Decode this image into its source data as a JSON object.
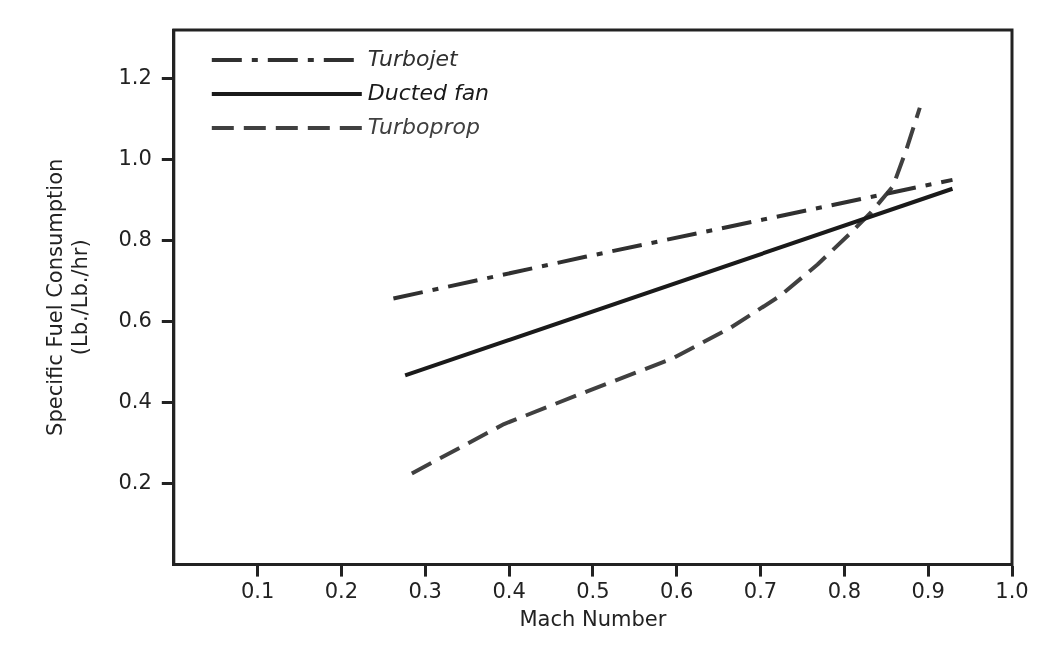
{
  "chart_data": {
    "type": "line",
    "xlabel": "Mach Number",
    "ylabel": "Specific Fuel Consumption\n(Lb./Lb./hr)",
    "xlim": [
      0,
      1.0
    ],
    "ylim": [
      0,
      1.32
    ],
    "xticks": [
      0.1,
      0.2,
      0.3,
      0.4,
      0.5,
      0.6,
      0.7,
      0.8,
      0.9,
      {
        "value": 1,
        "label": "1.0"
      }
    ],
    "yticks": [
      0.2,
      0.4,
      0.6,
      0.8,
      {
        "value": 1,
        "label": "1.0"
      },
      1.2
    ],
    "grid": false,
    "legend": "top left",
    "marker": "none",
    "series": [
      {
        "name": "Turbojet",
        "color": "#303030",
        "line_style": "dashdot",
        "x": [
          0.262,
          0.491,
          0.929
        ],
        "values": [
          0.657,
          0.76,
          0.95
        ]
      },
      {
        "name": "Ducted fan",
        "color": "#1a1a1a",
        "line_style": "solid",
        "x": [
          0.276,
          0.929
        ],
        "values": [
          0.467,
          0.928
        ]
      },
      {
        "name": "Turboprop",
        "color": "#404040",
        "line_style": "dashed",
        "x": [
          0.284,
          0.394,
          0.497,
          0.594,
          0.665,
          0.723,
          0.768,
          0.807,
          0.832,
          0.858,
          0.874,
          0.89
        ],
        "values": [
          0.225,
          0.347,
          0.431,
          0.508,
          0.586,
          0.663,
          0.741,
          0.818,
          0.87,
          0.934,
          1.025,
          1.128
        ]
      }
    ]
  }
}
